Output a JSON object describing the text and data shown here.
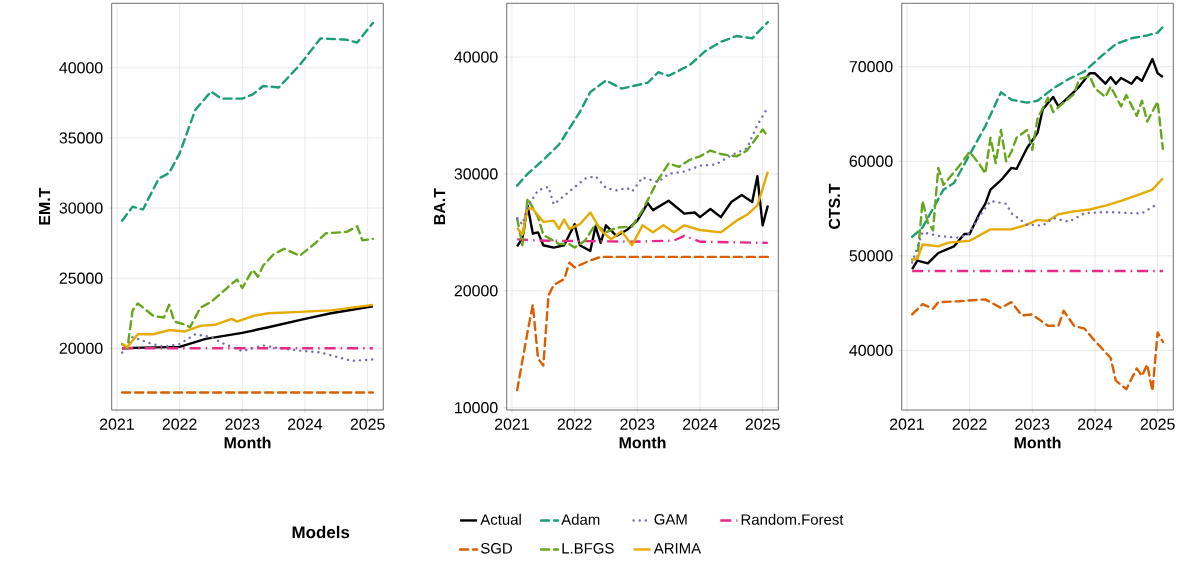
{
  "chart_data": [
    {
      "type": "line",
      "xlabel": "Month",
      "ylabel": "EM.T",
      "legend_title": "Models",
      "legend": "bottom",
      "grid": true,
      "xlim": [
        "2020-12",
        "2025-04"
      ],
      "xticks": [
        "2021",
        "2022",
        "2023",
        "2024",
        "2025"
      ],
      "ylim": [
        15600,
        44600
      ],
      "yticks": [
        20000,
        25000,
        30000,
        35000,
        40000
      ],
      "series": [
        {
          "name": "Actual",
          "color": "#000000",
          "line_style": "solid",
          "x": [
            "2021-02",
            "2021-06",
            "2022-01",
            "2022-06",
            "2023-01",
            "2023-06",
            "2024-01",
            "2024-06",
            "2025-02"
          ],
          "values": [
            20000,
            20050,
            20100,
            20670,
            21100,
            21500,
            22100,
            22500,
            23000
          ]
        },
        {
          "name": "Adam",
          "color": "#1b9e77",
          "line_style": "dashed",
          "x": [
            "2021-02",
            "2021-04",
            "2021-06",
            "2021-09",
            "2021-11",
            "2022-01",
            "2022-04",
            "2022-07",
            "2022-09",
            "2023-01",
            "2023-03",
            "2023-05",
            "2023-08",
            "2023-12",
            "2024-04",
            "2024-09",
            "2024-11",
            "2025-02"
          ],
          "values": [
            29100,
            30100,
            29900,
            32100,
            32500,
            33900,
            37000,
            38300,
            37800,
            37800,
            38100,
            38700,
            38600,
            40200,
            42100,
            42000,
            41800,
            43200
          ]
        },
        {
          "name": "GAM",
          "color": "#7570b3",
          "line_style": "dotted",
          "x": [
            "2021-02",
            "2021-04",
            "2021-07",
            "2021-10",
            "2022-01",
            "2022-04",
            "2022-07",
            "2022-09",
            "2023-01",
            "2023-05",
            "2023-08",
            "2024-01",
            "2024-04",
            "2024-08",
            "2024-10",
            "2025-02"
          ],
          "values": [
            19700,
            20800,
            20400,
            20100,
            20300,
            21000,
            20800,
            20400,
            19800,
            20200,
            20000,
            19800,
            19700,
            19300,
            19100,
            19200
          ]
        },
        {
          "name": "Random.Forest",
          "color": "#e7298a",
          "line_style": "dashdot",
          "x": [
            "2021-02",
            "2023-02",
            "2025-02"
          ],
          "values": [
            20000,
            20000,
            20000
          ]
        },
        {
          "name": "SGD",
          "color": "#d95f02",
          "line_style": "dashed",
          "x": [
            "2021-02",
            "2023-02",
            "2025-02"
          ],
          "values": [
            16850,
            16850,
            16850
          ]
        },
        {
          "name": "L.BFGS",
          "color": "#66a61e",
          "line_style": "dashed",
          "x": [
            "2021-02",
            "2021-03",
            "2021-04",
            "2021-05",
            "2021-08",
            "2021-10",
            "2021-11",
            "2021-12",
            "2022-02",
            "2022-03",
            "2022-05",
            "2022-07",
            "2022-11",
            "2022-12",
            "2023-01",
            "2023-03",
            "2023-04",
            "2023-05",
            "2023-07",
            "2023-09",
            "2023-12",
            "2024-03",
            "2024-05",
            "2024-09",
            "2024-11",
            "2024-12",
            "2025-02"
          ],
          "values": [
            20300,
            20000,
            22700,
            23200,
            22300,
            22200,
            23100,
            21900,
            21700,
            21500,
            22900,
            23300,
            24600,
            24900,
            24300,
            25600,
            25100,
            25900,
            26700,
            27100,
            26600,
            27500,
            28200,
            28300,
            28700,
            27700,
            27800
          ]
        },
        {
          "name": "ARIMA",
          "color": "#e6ab02",
          "line_style": "solid",
          "x": [
            "2021-02",
            "2021-03",
            "2021-05",
            "2021-08",
            "2021-11",
            "2022-02",
            "2022-05",
            "2022-08",
            "2022-11",
            "2022-12",
            "2023-03",
            "2023-06",
            "2023-12",
            "2024-06",
            "2025-02"
          ],
          "values": [
            20300,
            20100,
            21000,
            21000,
            21300,
            21200,
            21600,
            21700,
            22100,
            21900,
            22300,
            22500,
            22600,
            22700,
            23100
          ]
        }
      ]
    },
    {
      "type": "line",
      "xlabel": "Month",
      "ylabel": "BA.T",
      "grid": true,
      "xlim": [
        "2020-12",
        "2025-04"
      ],
      "xticks": [
        "2021",
        "2022",
        "2023",
        "2024",
        "2025"
      ],
      "ylim": [
        9800,
        44600
      ],
      "yticks": [
        10000,
        20000,
        30000,
        40000
      ],
      "series": [
        {
          "color": "#000000",
          "line_style": "solid",
          "x": [
            "2021-02",
            "2021-03",
            "2021-04",
            "2021-05",
            "2021-06",
            "2021-07",
            "2021-09",
            "2021-11",
            "2022-01",
            "2022-02",
            "2022-04",
            "2022-05",
            "2022-06",
            "2022-07",
            "2022-09",
            "2022-11",
            "2023-01",
            "2023-03",
            "2023-04",
            "2023-07",
            "2023-10",
            "2023-12",
            "2024-01",
            "2024-03",
            "2024-05",
            "2024-07",
            "2024-09",
            "2024-11",
            "2024-12",
            "2025-01",
            "2025-02"
          ],
          "values": [
            23800,
            24500,
            27300,
            24900,
            25000,
            23900,
            23700,
            23900,
            25700,
            23900,
            23400,
            25500,
            24100,
            25600,
            24700,
            25200,
            26000,
            27500,
            26900,
            27700,
            26600,
            26700,
            26300,
            27000,
            26300,
            27600,
            28200,
            27600,
            29800,
            25600,
            27300
          ]
        },
        {
          "color": "#1b9e77",
          "line_style": "dashed",
          "x": [
            "2021-02",
            "2021-04",
            "2021-07",
            "2021-10",
            "2021-12",
            "2022-02",
            "2022-04",
            "2022-07",
            "2022-10",
            "2022-12",
            "2023-03",
            "2023-05",
            "2023-07",
            "2023-11",
            "2024-02",
            "2024-05",
            "2024-08",
            "2024-11",
            "2025-02"
          ],
          "values": [
            29000,
            30000,
            31200,
            32500,
            33900,
            35300,
            37000,
            38000,
            37300,
            37500,
            37800,
            38700,
            38400,
            39300,
            40500,
            41300,
            41800,
            41600,
            43000
          ]
        },
        {
          "color": "#7570b3",
          "line_style": "dotted",
          "x": [
            "2021-02",
            "2021-03",
            "2021-04",
            "2021-06",
            "2021-08",
            "2021-09",
            "2021-12",
            "2022-03",
            "2022-05",
            "2022-07",
            "2022-09",
            "2022-11",
            "2022-12",
            "2023-02",
            "2023-05",
            "2023-07",
            "2023-10",
            "2024-01",
            "2024-04",
            "2024-07",
            "2024-10",
            "2024-12",
            "2025-02"
          ],
          "values": [
            26200,
            25700,
            27200,
            28600,
            28900,
            27400,
            28500,
            29600,
            29800,
            28800,
            28600,
            28800,
            28500,
            29700,
            29300,
            30000,
            30200,
            30700,
            30800,
            31600,
            32200,
            34200,
            35700
          ]
        },
        {
          "color": "#e7298a",
          "line_style": "dashdot",
          "x": [
            "2021-02",
            "2021-06",
            "2022-12",
            "2023-08",
            "2023-10",
            "2024-01",
            "2025-02"
          ],
          "values": [
            24400,
            24300,
            24200,
            24300,
            24700,
            24200,
            24100
          ]
        },
        {
          "color": "#d95f02",
          "line_style": "dashed",
          "x": [
            "2021-02",
            "2021-04",
            "2021-05",
            "2021-06",
            "2021-07",
            "2021-08",
            "2021-09",
            "2021-11",
            "2021-12",
            "2022-01",
            "2022-04",
            "2022-06",
            "2025-02"
          ],
          "values": [
            11500,
            16500,
            18800,
            14200,
            13600,
            19600,
            20500,
            21000,
            22400,
            22000,
            22600,
            22900,
            22900
          ]
        },
        {
          "color": "#66a61e",
          "line_style": "dashed",
          "x": [
            "2021-02",
            "2021-03",
            "2021-04",
            "2021-06",
            "2021-07",
            "2021-10",
            "2021-12",
            "2022-01",
            "2022-03",
            "2022-05",
            "2022-07",
            "2022-09",
            "2022-12",
            "2023-02",
            "2023-05",
            "2023-07",
            "2023-09",
            "2023-11",
            "2024-01",
            "2024-03",
            "2024-05",
            "2024-08",
            "2024-10",
            "2025-01",
            "2025-02"
          ],
          "values": [
            26200,
            23900,
            27900,
            26300,
            24800,
            24000,
            24000,
            23700,
            24300,
            25700,
            25000,
            25400,
            25500,
            26900,
            29500,
            30900,
            30600,
            31200,
            31500,
            32000,
            31700,
            31500,
            32000,
            33800,
            33200
          ]
        },
        {
          "color": "#e6ab02",
          "line_style": "solid",
          "x": [
            "2021-02",
            "2021-03",
            "2021-04",
            "2021-05",
            "2021-07",
            "2021-09",
            "2021-10",
            "2021-11",
            "2021-12",
            "2022-02",
            "2022-04",
            "2022-06",
            "2022-08",
            "2022-10",
            "2022-12",
            "2023-02",
            "2023-04",
            "2023-06",
            "2023-08",
            "2023-10",
            "2024-01",
            "2024-05",
            "2024-08",
            "2024-10",
            "2024-12",
            "2025-02"
          ],
          "values": [
            25400,
            24800,
            27100,
            27000,
            25900,
            26000,
            25300,
            26100,
            25300,
            25700,
            26700,
            25200,
            24400,
            25100,
            23900,
            25600,
            25000,
            25600,
            25000,
            25600,
            25200,
            25000,
            26000,
            26500,
            27300,
            30200
          ]
        }
      ]
    },
    {
      "type": "line",
      "xlabel": "Month",
      "ylabel": "CTS.T",
      "grid": true,
      "xlim": [
        "2020-12",
        "2025-04"
      ],
      "xticks": [
        "2021",
        "2022",
        "2023",
        "2024",
        "2025"
      ],
      "ylim": [
        33700,
        76700
      ],
      "yticks": [
        40000,
        50000,
        60000,
        70000
      ],
      "series": [
        {
          "color": "#000000",
          "line_style": "solid",
          "x": [
            "2021-02",
            "2021-03",
            "2021-05",
            "2021-07",
            "2021-10",
            "2021-12",
            "2022-01",
            "2022-03",
            "2022-04",
            "2022-05",
            "2022-07",
            "2022-09",
            "2022-10",
            "2022-12",
            "2023-02",
            "2023-03",
            "2023-05",
            "2023-06",
            "2023-08",
            "2023-10",
            "2023-12",
            "2024-01",
            "2024-03",
            "2024-04",
            "2024-05",
            "2024-06",
            "2024-08",
            "2024-09",
            "2024-10",
            "2024-12",
            "2025-01",
            "2025-02"
          ],
          "values": [
            48600,
            49500,
            49200,
            50300,
            51000,
            52300,
            52300,
            54600,
            55500,
            57000,
            58000,
            59300,
            59200,
            61400,
            63000,
            65500,
            66800,
            65800,
            66800,
            67900,
            69300,
            69300,
            68200,
            68900,
            68200,
            68800,
            68200,
            68900,
            68500,
            70800,
            69300,
            68900
          ]
        },
        {
          "color": "#1b9e77",
          "line_style": "dashed",
          "x": [
            "2021-02",
            "2021-04",
            "2021-06",
            "2021-08",
            "2021-10",
            "2022-01",
            "2022-04",
            "2022-07",
            "2022-09",
            "2022-12",
            "2023-02",
            "2023-05",
            "2023-08",
            "2023-11",
            "2024-02",
            "2024-05",
            "2024-08",
            "2024-11",
            "2025-01",
            "2025-02"
          ],
          "values": [
            52000,
            53000,
            55000,
            57000,
            57700,
            60700,
            63700,
            67300,
            66500,
            66200,
            66400,
            67700,
            68700,
            69500,
            71000,
            72400,
            73000,
            73300,
            73600,
            74200
          ]
        },
        {
          "color": "#7570b3",
          "line_style": "dotted",
          "x": [
            "2021-02",
            "2021-04",
            "2021-07",
            "2021-11",
            "2022-01",
            "2022-03",
            "2022-05",
            "2022-08",
            "2022-09",
            "2022-12",
            "2023-03",
            "2023-05",
            "2023-08",
            "2023-11",
            "2024-02",
            "2024-05",
            "2024-08",
            "2024-10",
            "2025-01"
          ],
          "values": [
            49300,
            52500,
            52100,
            51900,
            52400,
            54300,
            55800,
            55500,
            54500,
            53300,
            53200,
            54000,
            53600,
            54500,
            54600,
            54600,
            54500,
            54500,
            55500
          ]
        },
        {
          "color": "#e7298a",
          "line_style": "dashdot",
          "x": [
            "2021-02",
            "2023-02",
            "2025-02"
          ],
          "values": [
            48400,
            48400,
            48400
          ]
        },
        {
          "color": "#d95f02",
          "line_style": "dashed",
          "x": [
            "2021-02",
            "2021-04",
            "2021-06",
            "2021-07",
            "2021-11",
            "2022-04",
            "2022-07",
            "2022-09",
            "2022-11",
            "2023-01",
            "2023-04",
            "2023-06",
            "2023-07",
            "2023-09",
            "2023-11",
            "2024-01",
            "2024-04",
            "2024-05",
            "2024-07",
            "2024-09",
            "2024-10",
            "2024-11",
            "2024-12",
            "2025-01",
            "2025-02"
          ],
          "values": [
            43800,
            44900,
            44400,
            45100,
            45200,
            45400,
            44500,
            45100,
            43700,
            43800,
            42600,
            42600,
            44200,
            42600,
            42300,
            41000,
            39200,
            36800,
            35900,
            38100,
            37300,
            38500,
            35700,
            41900,
            40900
          ]
        },
        {
          "color": "#66a61e",
          "line_style": "dashed",
          "x": [
            "2021-02",
            "2021-03",
            "2021-04",
            "2021-05",
            "2021-06",
            "2021-07",
            "2021-08",
            "2021-11",
            "2022-01",
            "2022-03",
            "2022-04",
            "2022-05",
            "2022-06",
            "2022-07",
            "2022-08",
            "2022-09",
            "2022-10",
            "2022-12",
            "2023-01",
            "2023-02",
            "2023-04",
            "2023-05",
            "2023-07",
            "2023-09",
            "2023-10",
            "2023-12",
            "2024-01",
            "2024-03",
            "2024-04",
            "2024-06",
            "2024-07",
            "2024-09",
            "2024-10",
            "2024-11",
            "2025-01",
            "2025-02"
          ],
          "values": [
            49600,
            49700,
            55800,
            53500,
            52700,
            59300,
            57500,
            59500,
            61000,
            59600,
            58700,
            62500,
            59800,
            63300,
            60000,
            61000,
            62500,
            63300,
            61200,
            64500,
            66700,
            65200,
            66200,
            67100,
            68700,
            69000,
            67700,
            66800,
            67900,
            65800,
            67000,
            64800,
            66400,
            64200,
            66300,
            61300
          ]
        },
        {
          "color": "#e6ab02",
          "line_style": "solid",
          "x": [
            "2021-02",
            "2021-03",
            "2021-04",
            "2021-07",
            "2021-09",
            "2022-01",
            "2022-05",
            "2022-09",
            "2022-12",
            "2023-02",
            "2023-04",
            "2023-06",
            "2023-09",
            "2023-12",
            "2024-03",
            "2024-06",
            "2024-09",
            "2024-12",
            "2025-02"
          ],
          "values": [
            49600,
            49700,
            51200,
            51000,
            51400,
            51600,
            52800,
            52800,
            53300,
            53800,
            53700,
            54400,
            54700,
            54900,
            55300,
            55800,
            56400,
            57000,
            58200
          ]
        }
      ]
    }
  ]
}
